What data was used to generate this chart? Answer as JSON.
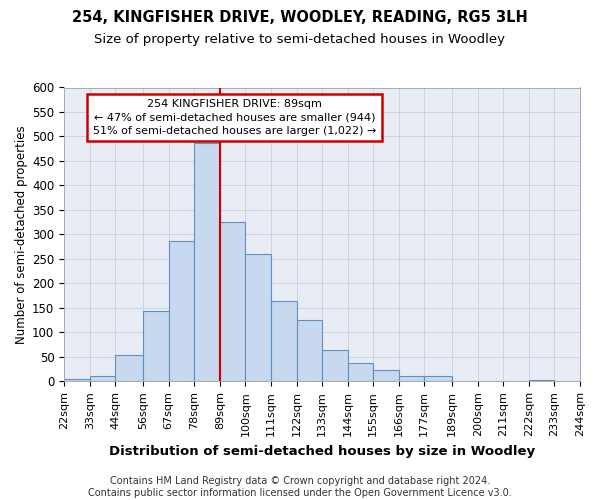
{
  "title": "254, KINGFISHER DRIVE, WOODLEY, READING, RG5 3LH",
  "subtitle": "Size of property relative to semi-detached houses in Woodley",
  "xlabel": "Distribution of semi-detached houses by size in Woodley",
  "ylabel": "Number of semi-detached properties",
  "bins": [
    22,
    33,
    44,
    56,
    67,
    78,
    89,
    100,
    111,
    122,
    133,
    144,
    155,
    166,
    177,
    189,
    200,
    211,
    222,
    233,
    244
  ],
  "counts": [
    5,
    11,
    53,
    143,
    287,
    487,
    325,
    261,
    165,
    126,
    63,
    37,
    23,
    10,
    10,
    0,
    0,
    0,
    2,
    0
  ],
  "highlight_bin": 89,
  "highlight_line_color": "#cc0000",
  "bar_color": "#c8d8ee",
  "bar_edge_color": "#6090c0",
  "background_color": "#e8edf5",
  "annotation_line1": "254 KINGFISHER DRIVE: 89sqm",
  "annotation_line2": "← 47% of semi-detached houses are smaller (944)",
  "annotation_line3": "51% of semi-detached houses are larger (1,022) →",
  "annotation_box_color": "#ffffff",
  "annotation_box_edge_color": "#cc0000",
  "ylim": [
    0,
    600
  ],
  "yticks": [
    0,
    50,
    100,
    150,
    200,
    250,
    300,
    350,
    400,
    450,
    500,
    550,
    600
  ],
  "footer": "Contains HM Land Registry data © Crown copyright and database right 2024.\nContains public sector information licensed under the Open Government Licence v3.0.",
  "title_fontsize": 10.5,
  "subtitle_fontsize": 9.5,
  "xlabel_fontsize": 9.5,
  "ylabel_fontsize": 8.5,
  "tick_fontsize": 8,
  "annot_fontsize": 8,
  "footer_fontsize": 7
}
